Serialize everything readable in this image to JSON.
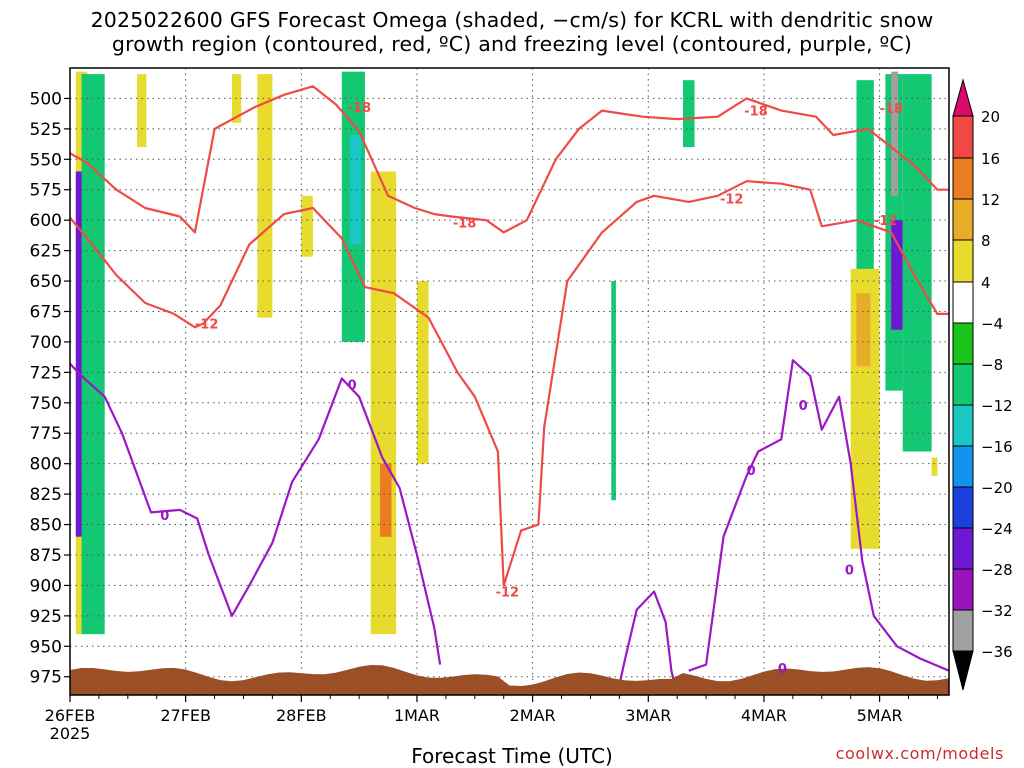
{
  "title_line1": "2025022600 GFS Forecast Omega (shaded, −cm/s) for KCRL with dendritic snow",
  "title_line2": "growth region (contoured, red, ºC) and freezing level (contoured, purple, ºC)",
  "xlabel": "Forecast Time (UTC)",
  "credit": "coolwx.com/models",
  "colors": {
    "dgz_contour": "#f04a48",
    "freezing_contour": "#9a18c6",
    "terrain": "#9a4f26",
    "grid": "#555555"
  },
  "chart_data": {
    "type": "heatmap",
    "variable": "Omega (shaded, −cm/s)",
    "x": {
      "label": "Forecast Time (UTC)",
      "ticks": [
        "26FEB",
        "27FEB",
        "28FEB",
        "1MAR",
        "2MAR",
        "3MAR",
        "4MAR",
        "5MAR"
      ],
      "year_label": "2025",
      "range_days": [
        0,
        7.6
      ]
    },
    "y": {
      "label": "",
      "units": "hPa",
      "inverted": true,
      "ticks": [
        500,
        525,
        550,
        575,
        600,
        625,
        650,
        675,
        700,
        725,
        750,
        775,
        800,
        825,
        850,
        875,
        900,
        925,
        950,
        975
      ],
      "range": [
        990,
        475
      ]
    },
    "colorbar": {
      "labels": [
        "20",
        "16",
        "12",
        "8",
        "4",
        "−4",
        "−8",
        "−12",
        "−16",
        "−20",
        "−24",
        "−28",
        "−32",
        "−36"
      ],
      "bins": [
        {
          "color": "#dc0a6e"
        },
        {
          "color": "#f04845"
        },
        {
          "color": "#ea7d20"
        },
        {
          "color": "#e7ad28"
        },
        {
          "color": "#e7dc2d"
        },
        {
          "color": "#ffffff"
        },
        {
          "color": "#1bc41b"
        },
        {
          "color": "#13c773"
        },
        {
          "color": "#1ac7c4"
        },
        {
          "color": "#1294ee"
        },
        {
          "color": "#1b40dd"
        },
        {
          "color": "#6e18d4"
        },
        {
          "color": "#9a14be"
        },
        {
          "color": "#a0a0a0"
        },
        {
          "color": "#000000"
        }
      ]
    },
    "contours": [
      {
        "name": "-18 ºC",
        "color": "#f04a48",
        "label": "-18",
        "label_points": [
          [
            2.4,
            507
          ],
          [
            3.31,
            602
          ],
          [
            5.83,
            510
          ],
          [
            7.0,
            508
          ]
        ],
        "points": [
          [
            0.0,
            545
          ],
          [
            0.15,
            553
          ],
          [
            0.4,
            575
          ],
          [
            0.65,
            590
          ],
          [
            0.95,
            597
          ],
          [
            1.08,
            610
          ],
          [
            1.25,
            525
          ],
          [
            1.6,
            507
          ],
          [
            1.85,
            497
          ],
          [
            2.1,
            490
          ],
          [
            2.3,
            505
          ],
          [
            2.5,
            527
          ],
          [
            2.75,
            580
          ],
          [
            2.98,
            590
          ],
          [
            3.15,
            595
          ],
          [
            3.3,
            597
          ],
          [
            3.6,
            600
          ],
          [
            3.75,
            610
          ],
          [
            3.95,
            600
          ],
          [
            4.2,
            550
          ],
          [
            4.4,
            525
          ],
          [
            4.6,
            510
          ],
          [
            4.95,
            515
          ],
          [
            5.25,
            517
          ],
          [
            5.6,
            515
          ],
          [
            5.85,
            500
          ],
          [
            6.15,
            510
          ],
          [
            6.45,
            515
          ],
          [
            6.6,
            530
          ],
          [
            6.9,
            525
          ],
          [
            7.1,
            540
          ],
          [
            7.3,
            555
          ],
          [
            7.5,
            575
          ],
          [
            7.6,
            575
          ]
        ]
      },
      {
        "name": "-12 ºC",
        "color": "#f04a48",
        "label": "-12",
        "label_points": [
          [
            1.08,
            685
          ],
          [
            3.68,
            905
          ],
          [
            5.62,
            582
          ],
          [
            6.95,
            600
          ]
        ],
        "points": [
          [
            0.0,
            598
          ],
          [
            0.15,
            615
          ],
          [
            0.4,
            645
          ],
          [
            0.65,
            668
          ],
          [
            0.9,
            677
          ],
          [
            1.08,
            688
          ],
          [
            1.15,
            685
          ],
          [
            1.3,
            670
          ],
          [
            1.55,
            620
          ],
          [
            1.85,
            595
          ],
          [
            2.1,
            590
          ],
          [
            2.35,
            615
          ],
          [
            2.55,
            655
          ],
          [
            2.8,
            660
          ],
          [
            3.1,
            680
          ],
          [
            3.35,
            725
          ],
          [
            3.5,
            745
          ],
          [
            3.7,
            790
          ],
          [
            3.75,
            900
          ],
          [
            3.9,
            855
          ],
          [
            4.05,
            850
          ],
          [
            4.1,
            770
          ],
          [
            4.3,
            650
          ],
          [
            4.6,
            610
          ],
          [
            4.9,
            585
          ],
          [
            5.05,
            580
          ],
          [
            5.35,
            585
          ],
          [
            5.6,
            580
          ],
          [
            5.85,
            568
          ],
          [
            6.15,
            570
          ],
          [
            6.4,
            575
          ],
          [
            6.5,
            605
          ],
          [
            6.8,
            600
          ],
          [
            7.1,
            610
          ],
          [
            7.3,
            645
          ],
          [
            7.5,
            677
          ],
          [
            7.6,
            677
          ]
        ]
      },
      {
        "name": "0 ºC freezing level",
        "color": "#9a18c6",
        "label": "0",
        "label_points": [
          [
            0.78,
            842
          ],
          [
            2.4,
            735
          ],
          [
            5.85,
            805
          ],
          [
            6.3,
            752
          ],
          [
            6.7,
            887
          ],
          [
            6.12,
            968
          ]
        ],
        "points": [
          [
            0.0,
            718
          ],
          [
            0.1,
            728
          ],
          [
            0.3,
            745
          ],
          [
            0.45,
            775
          ],
          [
            0.7,
            840
          ],
          [
            0.95,
            838
          ],
          [
            1.1,
            845
          ],
          [
            1.2,
            875
          ],
          [
            1.4,
            925
          ],
          [
            1.55,
            900
          ],
          [
            1.75,
            865
          ],
          [
            1.92,
            815
          ],
          [
            2.15,
            780
          ],
          [
            2.35,
            730
          ],
          [
            2.5,
            745
          ],
          [
            2.7,
            795
          ],
          [
            2.85,
            820
          ],
          [
            3.0,
            875
          ],
          [
            3.15,
            935
          ],
          [
            3.2,
            965
          ]
        ]
      },
      {
        "name": "0 ºC (east)",
        "color": "#9a18c6",
        "label": "",
        "label_points": [],
        "points": [
          [
            5.35,
            970
          ],
          [
            5.5,
            965
          ],
          [
            5.65,
            860
          ],
          [
            5.75,
            835
          ],
          [
            5.85,
            810
          ],
          [
            5.95,
            790
          ],
          [
            6.15,
            780
          ],
          [
            6.25,
            715
          ],
          [
            6.4,
            728
          ],
          [
            6.5,
            772
          ],
          [
            6.65,
            745
          ],
          [
            6.75,
            800
          ],
          [
            6.85,
            880
          ],
          [
            6.95,
            925
          ],
          [
            7.15,
            950
          ],
          [
            7.35,
            960
          ],
          [
            7.6,
            970
          ]
        ]
      },
      {
        "name": "0 ºC (west arm)",
        "color": "#9a18c6",
        "label": "",
        "label_points": [],
        "points": [
          [
            4.73,
            990
          ],
          [
            4.8,
            960
          ],
          [
            4.9,
            920
          ],
          [
            5.05,
            905
          ],
          [
            5.15,
            930
          ],
          [
            5.2,
            970
          ],
          [
            5.25,
            990
          ]
        ]
      }
    ],
    "omega_regions": [
      {
        "value": 6,
        "x0": 0.05,
        "x1": 0.15,
        "p0": 478,
        "p1": 940
      },
      {
        "value": -26,
        "x0": 0.05,
        "x1": 0.12,
        "p0": 560,
        "p1": 860
      },
      {
        "value": -10,
        "x0": 0.1,
        "x1": 0.3,
        "p0": 480,
        "p1": 940
      },
      {
        "value": 6,
        "x0": 0.58,
        "x1": 0.66,
        "p0": 480,
        "p1": 540
      },
      {
        "value": 6,
        "x0": 1.4,
        "x1": 1.48,
        "p0": 480,
        "p1": 520
      },
      {
        "value": 6,
        "x0": 1.62,
        "x1": 1.75,
        "p0": 480,
        "p1": 680
      },
      {
        "value": 6,
        "x0": 2.0,
        "x1": 2.1,
        "p0": 580,
        "p1": 630
      },
      {
        "value": -10,
        "x0": 2.35,
        "x1": 2.55,
        "p0": 478,
        "p1": 700
      },
      {
        "value": -14,
        "x0": 2.42,
        "x1": 2.52,
        "p0": 530,
        "p1": 620
      },
      {
        "value": 6,
        "x0": 2.6,
        "x1": 2.82,
        "p0": 560,
        "p1": 940
      },
      {
        "value": 12,
        "x0": 2.68,
        "x1": 2.78,
        "p0": 800,
        "p1": 860
      },
      {
        "value": 6,
        "x0": 3.0,
        "x1": 3.1,
        "p0": 650,
        "p1": 800
      },
      {
        "value": -10,
        "x0": 4.68,
        "x1": 4.72,
        "p0": 650,
        "p1": 830
      },
      {
        "value": -10,
        "x0": 5.3,
        "x1": 5.4,
        "p0": 485,
        "p1": 540
      },
      {
        "value": -10,
        "x0": 6.8,
        "x1": 6.95,
        "p0": 485,
        "p1": 850
      },
      {
        "value": 6,
        "x0": 6.75,
        "x1": 7.0,
        "p0": 640,
        "p1": 870
      },
      {
        "value": 10,
        "x0": 6.8,
        "x1": 6.92,
        "p0": 660,
        "p1": 720
      },
      {
        "value": -12,
        "x0": 7.05,
        "x1": 7.2,
        "p0": 480,
        "p1": 740
      },
      {
        "value": -26,
        "x0": 7.1,
        "x1": 7.2,
        "p0": 600,
        "p1": 690
      },
      {
        "value": -36,
        "x0": 7.1,
        "x1": 7.16,
        "p0": 478,
        "p1": 580
      },
      {
        "value": -10,
        "x0": 7.2,
        "x1": 7.45,
        "p0": 480,
        "p1": 790
      },
      {
        "value": 6,
        "x0": 7.45,
        "x1": 7.5,
        "p0": 795,
        "p1": 810
      }
    ],
    "terrain": {
      "label": "",
      "surface_pressure_hpa": 972
    }
  }
}
